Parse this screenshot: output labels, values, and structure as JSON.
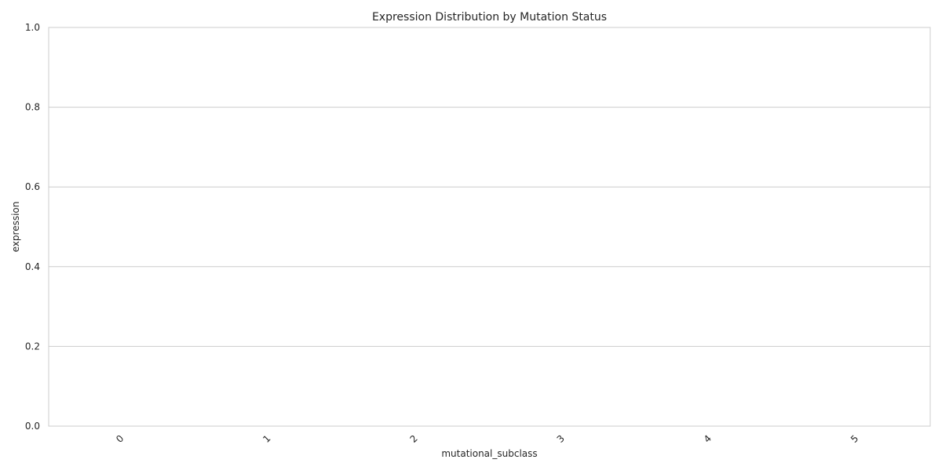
{
  "chart_data": {
    "type": "bar",
    "title": "Expression Distribution by Mutation Status",
    "xlabel": "mutational_subclass",
    "ylabel": "expression",
    "categories": [
      "0",
      "1",
      "2",
      "3",
      "4",
      "5"
    ],
    "series": [],
    "ylim": [
      0,
      1.0
    ],
    "yticks": [
      "0.0",
      "0.2",
      "0.4",
      "0.6",
      "0.8",
      "1.0"
    ],
    "grid": "horizontal",
    "colors": {
      "grid": "#cccccc",
      "frame": "#cccccc",
      "text": "#262626"
    }
  }
}
